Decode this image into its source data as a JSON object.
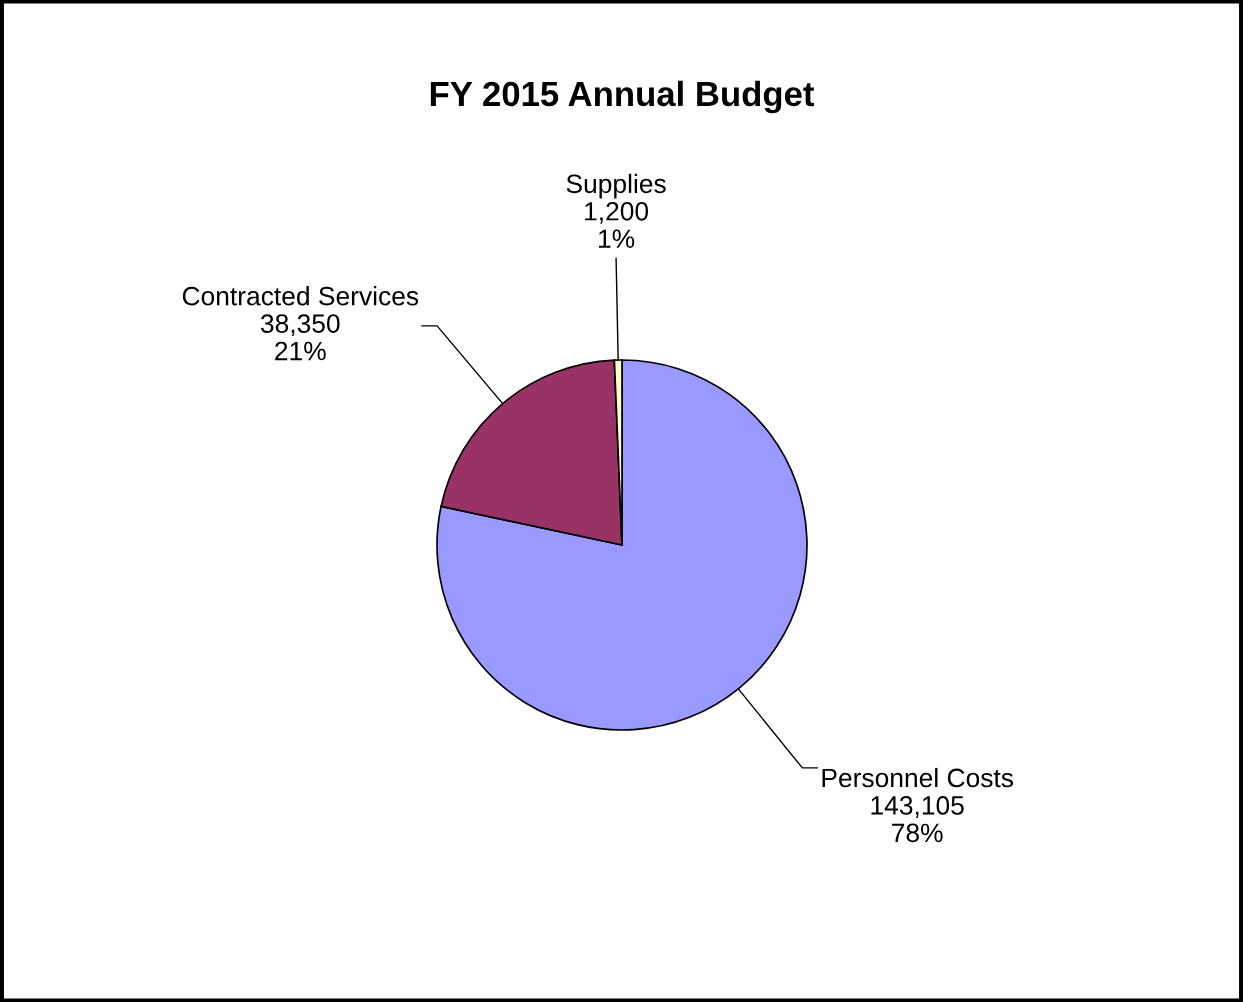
{
  "chart_data": {
    "type": "pie",
    "title": "FY 2015 Annual Budget",
    "categories": [
      "Personnel Costs",
      "Contracted Services",
      "Supplies"
    ],
    "values": [
      143105,
      38350,
      1200
    ],
    "colors": [
      "#9999ff",
      "#993366",
      "#ffffcc"
    ],
    "value_labels": [
      "143,105\n78%",
      "38,350\n21%",
      "1,200\n1%"
    ],
    "legend": false
  }
}
